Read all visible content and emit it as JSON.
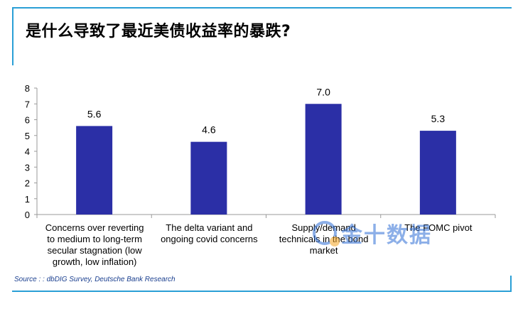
{
  "title": "是什么导致了最近美债收益率的暴跌?",
  "source": "Source : : dbDIG Survey, Deutsche Bank Research",
  "watermark": {
    "text": "金十数据"
  },
  "colors": {
    "bar": "#2b2fa6",
    "frame": "#2a9fd6",
    "axis": "#9a9a9a"
  },
  "chart_data": {
    "type": "bar",
    "title": "是什么导致了最近美债收益率的暴跌?",
    "categories": [
      "Concerns over reverting to medium to long-term secular stagnation (low growth, low inflation)",
      "The delta variant and ongoing covid concerns",
      "Supply/demand technicals in the bond market",
      "The FOMC pivot"
    ],
    "category_lines": [
      [
        "Concerns over reverting",
        "to medium to long-term",
        "secular stagnation (low",
        "growth, low inflation)"
      ],
      [
        "The delta variant and",
        "ongoing covid concerns"
      ],
      [
        "Supply/demand",
        "technicals in the bond",
        "market"
      ],
      [
        "The FOMC pivot"
      ]
    ],
    "values": [
      5.6,
      4.6,
      7.0,
      5.3
    ],
    "value_labels": [
      "5.6",
      "4.6",
      "7.0",
      "5.3"
    ],
    "yticks": [
      "0",
      "1",
      "2",
      "3",
      "4",
      "5",
      "6",
      "7",
      "8"
    ],
    "ylim": [
      0,
      8
    ],
    "xlabel": "",
    "ylabel": "",
    "grid": false
  }
}
